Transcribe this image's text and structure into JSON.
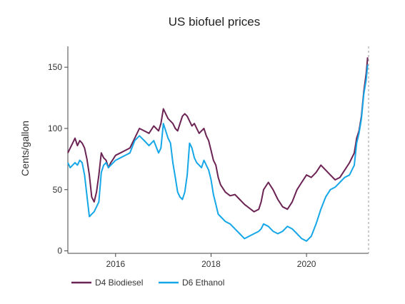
{
  "chart_data": {
    "type": "line",
    "title": "US biofuel prices",
    "xlabel": "",
    "ylabel": "Cents/gallon",
    "xlim": [
      2015.0,
      2021.3
    ],
    "ylim": [
      -2,
      167
    ],
    "x_ticks": [
      2016,
      2018,
      2020
    ],
    "x_tick_labels": [
      "2016",
      "2018",
      "2020"
    ],
    "y_ticks": [
      0,
      50,
      100,
      150
    ],
    "y_tick_labels": [
      "0",
      "50",
      "100",
      "150"
    ],
    "grid": false,
    "legend": "bottom-left",
    "marker_line_x": 2021.3,
    "series": [
      {
        "name": "D4 Biodiesel",
        "color": "#6b2354",
        "x": [
          2015.0,
          2015.05,
          2015.1,
          2015.15,
          2015.2,
          2015.25,
          2015.3,
          2015.35,
          2015.4,
          2015.45,
          2015.5,
          2015.55,
          2015.6,
          2015.65,
          2015.7,
          2015.75,
          2015.8,
          2015.85,
          2015.9,
          2015.95,
          2016.0,
          2016.1,
          2016.2,
          2016.3,
          2016.4,
          2016.5,
          2016.6,
          2016.7,
          2016.8,
          2016.9,
          2016.95,
          2017.0,
          2017.05,
          2017.1,
          2017.15,
          2017.2,
          2017.25,
          2017.3,
          2017.35,
          2017.4,
          2017.45,
          2017.5,
          2017.55,
          2017.6,
          2017.65,
          2017.7,
          2017.75,
          2017.8,
          2017.85,
          2017.9,
          2017.95,
          2018.0,
          2018.05,
          2018.1,
          2018.15,
          2018.2,
          2018.3,
          2018.4,
          2018.5,
          2018.6,
          2018.7,
          2018.8,
          2018.9,
          2019.0,
          2019.05,
          2019.1,
          2019.2,
          2019.3,
          2019.4,
          2019.5,
          2019.6,
          2019.7,
          2019.8,
          2019.9,
          2020.0,
          2020.1,
          2020.2,
          2020.3,
          2020.4,
          2020.5,
          2020.6,
          2020.7,
          2020.8,
          2020.9,
          2021.0,
          2021.05,
          2021.1,
          2021.15,
          2021.2,
          2021.25,
          2021.28
        ],
        "y": [
          80,
          84,
          88,
          92,
          86,
          90,
          88,
          84,
          75,
          62,
          44,
          40,
          48,
          62,
          80,
          76,
          74,
          68,
          72,
          75,
          78,
          80,
          82,
          84,
          92,
          100,
          98,
          96,
          102,
          98,
          104,
          116,
          112,
          108,
          106,
          104,
          100,
          98,
          104,
          110,
          112,
          110,
          106,
          102,
          104,
          100,
          96,
          98,
          100,
          94,
          90,
          82,
          74,
          70,
          60,
          54,
          48,
          45,
          46,
          42,
          38,
          35,
          32,
          34,
          40,
          50,
          56,
          50,
          42,
          36,
          34,
          40,
          50,
          56,
          62,
          60,
          64,
          70,
          66,
          62,
          58,
          60,
          66,
          72,
          80,
          92,
          98,
          110,
          130,
          145,
          158
        ]
      },
      {
        "name": "D6 Ethanol",
        "color": "#15a7e8",
        "x": [
          2015.0,
          2015.05,
          2015.1,
          2015.15,
          2015.2,
          2015.25,
          2015.3,
          2015.35,
          2015.4,
          2015.45,
          2015.5,
          2015.55,
          2015.6,
          2015.65,
          2015.7,
          2015.75,
          2015.8,
          2015.85,
          2015.9,
          2015.95,
          2016.0,
          2016.1,
          2016.2,
          2016.3,
          2016.4,
          2016.5,
          2016.6,
          2016.7,
          2016.8,
          2016.9,
          2016.95,
          2017.0,
          2017.05,
          2017.1,
          2017.15,
          2017.2,
          2017.25,
          2017.3,
          2017.35,
          2017.4,
          2017.45,
          2017.5,
          2017.55,
          2017.6,
          2017.65,
          2017.7,
          2017.75,
          2017.8,
          2017.85,
          2017.9,
          2017.95,
          2018.0,
          2018.05,
          2018.1,
          2018.15,
          2018.2,
          2018.3,
          2018.4,
          2018.5,
          2018.6,
          2018.7,
          2018.8,
          2018.9,
          2019.0,
          2019.05,
          2019.1,
          2019.2,
          2019.3,
          2019.4,
          2019.5,
          2019.6,
          2019.7,
          2019.8,
          2019.9,
          2020.0,
          2020.1,
          2020.2,
          2020.3,
          2020.4,
          2020.5,
          2020.6,
          2020.7,
          2020.8,
          2020.9,
          2021.0,
          2021.05,
          2021.1,
          2021.15,
          2021.2,
          2021.25,
          2021.28
        ],
        "y": [
          72,
          68,
          70,
          72,
          70,
          74,
          72,
          62,
          45,
          28,
          30,
          32,
          36,
          40,
          64,
          70,
          72,
          68,
          70,
          72,
          74,
          76,
          78,
          80,
          90,
          94,
          90,
          86,
          90,
          80,
          84,
          104,
          98,
          92,
          88,
          72,
          60,
          48,
          44,
          42,
          48,
          62,
          88,
          84,
          76,
          72,
          70,
          68,
          74,
          70,
          66,
          58,
          46,
          38,
          30,
          28,
          24,
          22,
          18,
          14,
          10,
          12,
          14,
          16,
          18,
          22,
          20,
          16,
          14,
          16,
          20,
          18,
          14,
          10,
          8,
          12,
          22,
          34,
          44,
          50,
          52,
          56,
          60,
          62,
          70,
          88,
          96,
          108,
          128,
          140,
          152
        ]
      }
    ]
  }
}
